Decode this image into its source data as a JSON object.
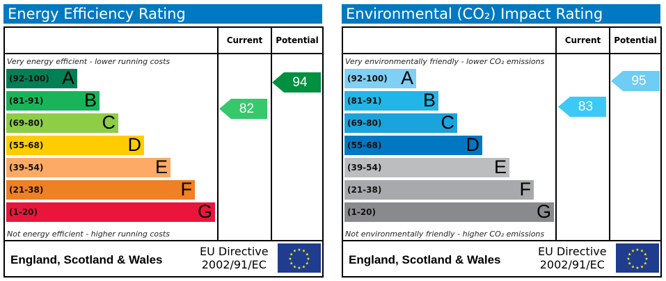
{
  "panels": [
    {
      "title": "Energy Efficiency Rating",
      "col_current": "Current",
      "col_potential": "Potential",
      "top_note": "Very energy efficient - lower running costs",
      "bottom_note": "Not energy efficient - higher running costs",
      "bands": [
        {
          "range": "(92-100)",
          "letter": "A",
          "color": "#008054"
        },
        {
          "range": "(81-91)",
          "letter": "B",
          "color": "#19b459"
        },
        {
          "range": "(69-80)",
          "letter": "C",
          "color": "#8dce46"
        },
        {
          "range": "(55-68)",
          "letter": "D",
          "color": "#ffcc00"
        },
        {
          "range": "(39-54)",
          "letter": "E",
          "color": "#fcaa65"
        },
        {
          "range": "(21-38)",
          "letter": "F",
          "color": "#ef8023"
        },
        {
          "range": "(1-20)",
          "letter": "G",
          "color": "#e9153b"
        }
      ],
      "current": {
        "value": "82",
        "color": "#35c96b"
      },
      "potential": {
        "value": "94",
        "color": "#009040"
      },
      "region": "England, Scotland & Wales",
      "directive_line1": "EU Directive",
      "directive_line2": "2002/91/EC"
    },
    {
      "title": "Environmental (CO₂) Impact Rating",
      "col_current": "Current",
      "col_potential": "Potential",
      "top_note": "Very environmentally friendly - lower CO₂ emissions",
      "bottom_note": "Not environmentally friendly - higher CO₂ emissions",
      "bands": [
        {
          "range": "(92-100)",
          "letter": "A",
          "color": "#7fd0f4"
        },
        {
          "range": "(81-91)",
          "letter": "B",
          "color": "#22b5e8"
        },
        {
          "range": "(69-80)",
          "letter": "C",
          "color": "#1aa3dc"
        },
        {
          "range": "(55-68)",
          "letter": "D",
          "color": "#0078c1"
        },
        {
          "range": "(39-54)",
          "letter": "E",
          "color": "#bbbdbf"
        },
        {
          "range": "(21-38)",
          "letter": "F",
          "color": "#a7a9ac"
        },
        {
          "range": "(1-20)",
          "letter": "G",
          "color": "#898a8d"
        }
      ],
      "current": {
        "value": "83",
        "color": "#3cc9f5"
      },
      "potential": {
        "value": "95",
        "color": "#6dcdf5"
      },
      "region": "England, Scotland & Wales",
      "directive_line1": "EU Directive",
      "directive_line2": "2002/91/EC"
    }
  ]
}
